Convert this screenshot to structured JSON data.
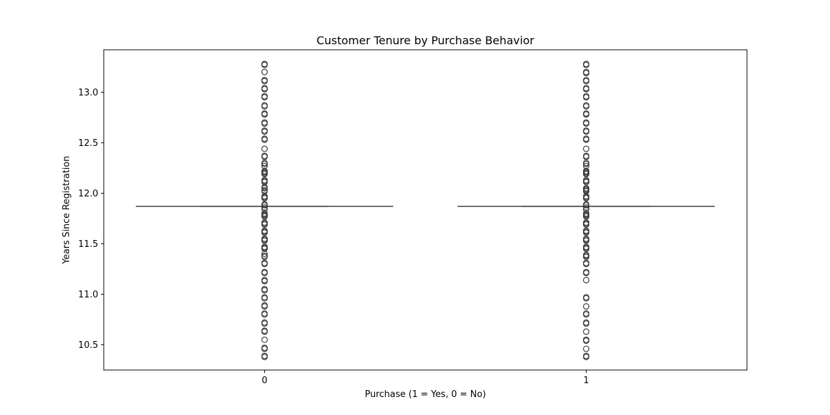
{
  "chart_data": {
    "type": "box",
    "title": "Customer Tenure by Purchase Behavior",
    "xlabel": "Purchase (1 = Yes, 0 = No)",
    "ylabel": "Years Since Registration",
    "categories": [
      "0",
      "1"
    ],
    "ylim": [
      10.25,
      13.42
    ],
    "yticks": [
      10.5,
      11.0,
      11.5,
      12.0,
      12.5,
      13.0
    ],
    "ytick_labels": [
      "10.5",
      "11.0",
      "11.5",
      "12.0",
      "12.5",
      "13.0"
    ],
    "grid": false,
    "boxes": [
      {
        "category": "0",
        "median": 11.87,
        "q1": 11.87,
        "q3": 11.87,
        "whisker_low": 11.87,
        "whisker_high": 11.87,
        "outliers": [
          10.38,
          10.39,
          10.46,
          10.47,
          10.55,
          10.63,
          10.64,
          10.71,
          10.72,
          10.8,
          10.81,
          10.88,
          10.89,
          10.96,
          10.97,
          11.04,
          11.05,
          11.13,
          11.14,
          11.21,
          11.22,
          11.3,
          11.31,
          11.37,
          11.38,
          11.4,
          11.45,
          11.46,
          11.47,
          11.53,
          11.54,
          11.55,
          11.61,
          11.62,
          11.63,
          11.69,
          11.7,
          11.71,
          11.77,
          11.78,
          11.79,
          11.8,
          11.84,
          11.86,
          11.88,
          11.89,
          11.95,
          11.96,
          11.97,
          12.02,
          12.03,
          12.05,
          12.06,
          12.11,
          12.12,
          12.13,
          12.19,
          12.2,
          12.21,
          12.22,
          12.27,
          12.29,
          12.3,
          12.36,
          12.37,
          12.44,
          12.53,
          12.54,
          12.61,
          12.62,
          12.69,
          12.7,
          12.78,
          12.79,
          12.86,
          12.87,
          12.95,
          12.96,
          13.03,
          13.04,
          13.11,
          13.12,
          13.2,
          13.27,
          13.28
        ]
      },
      {
        "category": "1",
        "median": 11.87,
        "q1": 11.87,
        "q3": 11.87,
        "whisker_low": 11.87,
        "whisker_high": 11.87,
        "outliers": [
          10.38,
          10.39,
          10.46,
          10.54,
          10.55,
          10.63,
          10.71,
          10.72,
          10.8,
          10.81,
          10.88,
          10.96,
          10.97,
          11.14,
          11.21,
          11.22,
          11.3,
          11.31,
          11.37,
          11.38,
          11.39,
          11.45,
          11.46,
          11.47,
          11.53,
          11.54,
          11.55,
          11.61,
          11.62,
          11.63,
          11.69,
          11.7,
          11.71,
          11.77,
          11.78,
          11.79,
          11.8,
          11.84,
          11.86,
          11.88,
          11.89,
          11.95,
          11.96,
          11.97,
          12.02,
          12.03,
          12.04,
          12.05,
          12.11,
          12.12,
          12.13,
          12.19,
          12.2,
          12.21,
          12.22,
          12.27,
          12.29,
          12.3,
          12.36,
          12.37,
          12.44,
          12.53,
          12.54,
          12.61,
          12.62,
          12.69,
          12.7,
          12.78,
          12.79,
          12.86,
          12.87,
          12.95,
          12.96,
          13.03,
          13.04,
          13.11,
          13.12,
          13.19,
          13.2,
          13.27,
          13.28
        ]
      }
    ],
    "colors": {
      "box_line": "#3d3d3d",
      "axis": "#000000",
      "background": "#ffffff"
    }
  }
}
